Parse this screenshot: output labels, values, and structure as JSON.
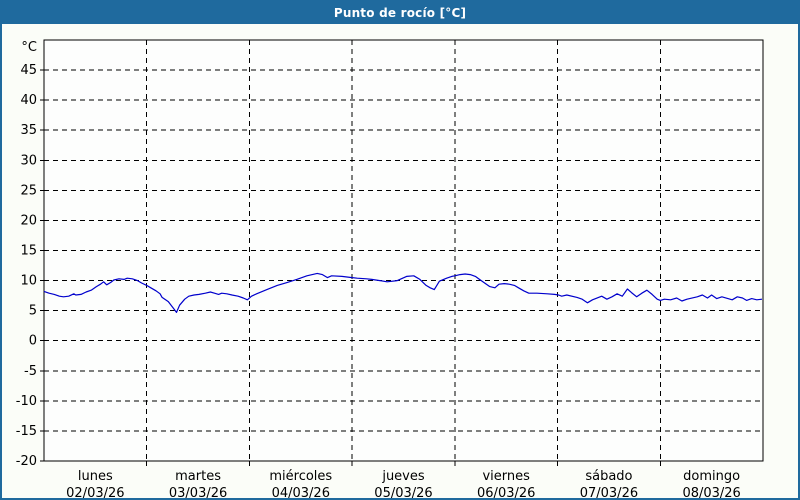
{
  "window": {
    "title": "Punto de rocío [°C]"
  },
  "colors": {
    "titlebar_bg": "#1f6a9e",
    "titlebar_text": "#ffffff",
    "window_border": "#1f6a9e",
    "page_bg": "#fbfdf8",
    "plot_bg": "#fdfefd",
    "grid": "#000000",
    "axis": "#000000",
    "series_line": "#0000cc",
    "label_text": "#000000"
  },
  "chart_data": {
    "type": "line",
    "title": "Punto de rocío [°C]",
    "ylabel": "°C",
    "grid": "dashed",
    "legend": "none",
    "y_axis": {
      "unit_label": "°C",
      "min": -20,
      "max": 50,
      "tick_step": 5,
      "tick_labels": [
        "45",
        "40",
        "35",
        "30",
        "25",
        "20",
        "15",
        "10",
        "5",
        "0",
        "-5",
        "-10",
        "-15",
        "-20"
      ]
    },
    "x_axis": {
      "span_days": 7,
      "days": [
        {
          "name": "lunes",
          "date": "02/03/26"
        },
        {
          "name": "martes",
          "date": "03/03/26"
        },
        {
          "name": "miércoles",
          "date": "04/03/26"
        },
        {
          "name": "jueves",
          "date": "05/03/26"
        },
        {
          "name": "viernes",
          "date": "06/03/26"
        },
        {
          "name": "sábado",
          "date": "07/03/26"
        },
        {
          "name": "domingo",
          "date": "08/03/26"
        }
      ]
    },
    "series": [
      {
        "name": "Punto de rocío",
        "color": "#0000cc",
        "points": [
          [
            0.0,
            8.2
          ],
          [
            0.05,
            7.9
          ],
          [
            0.1,
            7.7
          ],
          [
            0.15,
            7.4
          ],
          [
            0.19,
            7.3
          ],
          [
            0.24,
            7.4
          ],
          [
            0.29,
            7.8
          ],
          [
            0.31,
            7.6
          ],
          [
            0.36,
            7.7
          ],
          [
            0.41,
            8.1
          ],
          [
            0.46,
            8.4
          ],
          [
            0.51,
            9.0
          ],
          [
            0.55,
            9.4
          ],
          [
            0.58,
            9.8
          ],
          [
            0.61,
            9.3
          ],
          [
            0.65,
            9.7
          ],
          [
            0.68,
            10.1
          ],
          [
            0.73,
            10.3
          ],
          [
            0.78,
            10.2
          ],
          [
            0.81,
            10.4
          ],
          [
            0.86,
            10.3
          ],
          [
            0.91,
            10.0
          ],
          [
            0.95,
            9.6
          ],
          [
            1.0,
            9.2
          ],
          [
            1.04,
            8.8
          ],
          [
            1.09,
            8.3
          ],
          [
            1.13,
            7.8
          ],
          [
            1.15,
            7.2
          ],
          [
            1.21,
            6.5
          ],
          [
            1.26,
            5.4
          ],
          [
            1.29,
            4.7
          ],
          [
            1.32,
            5.9
          ],
          [
            1.37,
            6.9
          ],
          [
            1.41,
            7.4
          ],
          [
            1.46,
            7.6
          ],
          [
            1.51,
            7.7
          ],
          [
            1.57,
            7.9
          ],
          [
            1.62,
            8.1
          ],
          [
            1.66,
            7.9
          ],
          [
            1.7,
            7.7
          ],
          [
            1.73,
            7.9
          ],
          [
            1.78,
            7.8
          ],
          [
            1.83,
            7.6
          ],
          [
            1.89,
            7.4
          ],
          [
            1.94,
            7.1
          ],
          [
            1.98,
            6.8
          ],
          [
            2.02,
            7.4
          ],
          [
            2.07,
            7.8
          ],
          [
            2.17,
            8.5
          ],
          [
            2.27,
            9.2
          ],
          [
            2.37,
            9.7
          ],
          [
            2.46,
            10.2
          ],
          [
            2.56,
            10.8
          ],
          [
            2.66,
            11.2
          ],
          [
            2.71,
            11.0
          ],
          [
            2.76,
            10.5
          ],
          [
            2.8,
            10.8
          ],
          [
            2.9,
            10.7
          ],
          [
            3.0,
            10.5
          ],
          [
            3.05,
            10.4
          ],
          [
            3.14,
            10.3
          ],
          [
            3.19,
            10.2
          ],
          [
            3.27,
            10.0
          ],
          [
            3.34,
            9.8
          ],
          [
            3.44,
            10.0
          ],
          [
            3.53,
            10.7
          ],
          [
            3.6,
            10.8
          ],
          [
            3.66,
            10.2
          ],
          [
            3.72,
            9.2
          ],
          [
            3.76,
            8.8
          ],
          [
            3.8,
            8.5
          ],
          [
            3.85,
            9.9
          ],
          [
            3.92,
            10.4
          ],
          [
            3.97,
            10.7
          ],
          [
            4.0,
            10.8
          ],
          [
            4.05,
            11.0
          ],
          [
            4.1,
            11.1
          ],
          [
            4.15,
            11.0
          ],
          [
            4.2,
            10.7
          ],
          [
            4.24,
            10.2
          ],
          [
            4.29,
            9.6
          ],
          [
            4.34,
            9.0
          ],
          [
            4.39,
            8.8
          ],
          [
            4.43,
            9.4
          ],
          [
            4.48,
            9.5
          ],
          [
            4.53,
            9.4
          ],
          [
            4.58,
            9.2
          ],
          [
            4.62,
            8.8
          ],
          [
            4.67,
            8.3
          ],
          [
            4.72,
            7.9
          ],
          [
            4.8,
            7.9
          ],
          [
            4.9,
            7.8
          ],
          [
            4.97,
            7.7
          ],
          [
            5.01,
            7.6
          ],
          [
            5.04,
            7.4
          ],
          [
            5.09,
            7.6
          ],
          [
            5.19,
            7.2
          ],
          [
            5.24,
            6.9
          ],
          [
            5.29,
            6.3
          ],
          [
            5.34,
            6.8
          ],
          [
            5.43,
            7.4
          ],
          [
            5.48,
            6.9
          ],
          [
            5.53,
            7.3
          ],
          [
            5.58,
            7.8
          ],
          [
            5.63,
            7.4
          ],
          [
            5.68,
            8.6
          ],
          [
            5.72,
            8.0
          ],
          [
            5.77,
            7.3
          ],
          [
            5.82,
            7.9
          ],
          [
            5.87,
            8.4
          ],
          [
            5.92,
            7.7
          ],
          [
            5.97,
            6.9
          ],
          [
            6.0,
            6.7
          ],
          [
            6.04,
            6.9
          ],
          [
            6.1,
            6.8
          ],
          [
            6.16,
            7.1
          ],
          [
            6.21,
            6.6
          ],
          [
            6.26,
            6.9
          ],
          [
            6.36,
            7.3
          ],
          [
            6.41,
            7.6
          ],
          [
            6.46,
            7.1
          ],
          [
            6.5,
            7.6
          ],
          [
            6.55,
            7.0
          ],
          [
            6.6,
            7.3
          ],
          [
            6.7,
            6.8
          ],
          [
            6.75,
            7.3
          ],
          [
            6.8,
            7.1
          ],
          [
            6.84,
            6.7
          ],
          [
            6.89,
            7.0
          ],
          [
            6.94,
            6.8
          ],
          [
            6.99,
            6.9
          ]
        ]
      }
    ]
  }
}
